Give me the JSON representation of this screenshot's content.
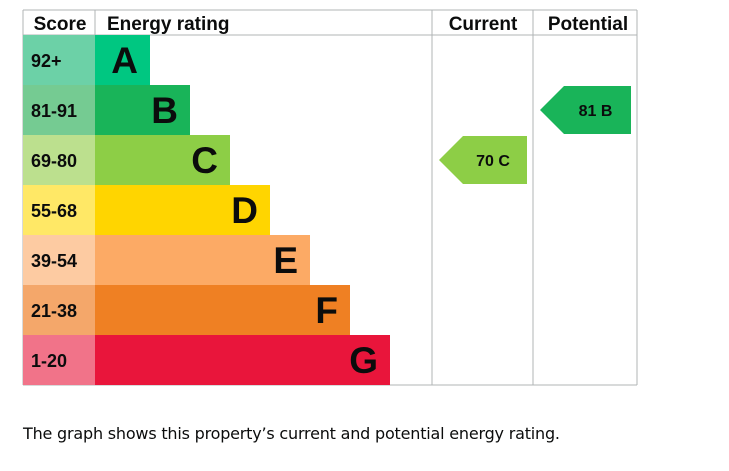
{
  "chart_data": {
    "type": "bar",
    "headers": {
      "score": "Score",
      "rating": "Energy rating",
      "current": "Current",
      "potential": "Potential"
    },
    "bands": [
      {
        "letter": "A",
        "score": "92+",
        "color": "#00c781",
        "score_bg": "#6cd1a7"
      },
      {
        "letter": "B",
        "score": "81-91",
        "color": "#19b459",
        "score_bg": "#75cb92"
      },
      {
        "letter": "C",
        "score": "69-80",
        "color": "#8dce46",
        "score_bg": "#bce08e"
      },
      {
        "letter": "D",
        "score": "55-68",
        "color": "#ffd500",
        "score_bg": "#ffe866"
      },
      {
        "letter": "E",
        "score": "39-54",
        "color": "#fcaa65",
        "score_bg": "#fdcba2"
      },
      {
        "letter": "F",
        "score": "21-38",
        "color": "#ef8023",
        "score_bg": "#f4a76a"
      },
      {
        "letter": "G",
        "score": "1-20",
        "color": "#e9153b",
        "score_bg": "#f17389"
      }
    ],
    "current": {
      "value": 70,
      "letter": "C",
      "label": "70  C",
      "color": "#8dce46"
    },
    "potential": {
      "value": 81,
      "letter": "B",
      "label": "81  B",
      "color": "#19b459"
    }
  },
  "caption": "The graph shows this property’s current and potential energy rating."
}
